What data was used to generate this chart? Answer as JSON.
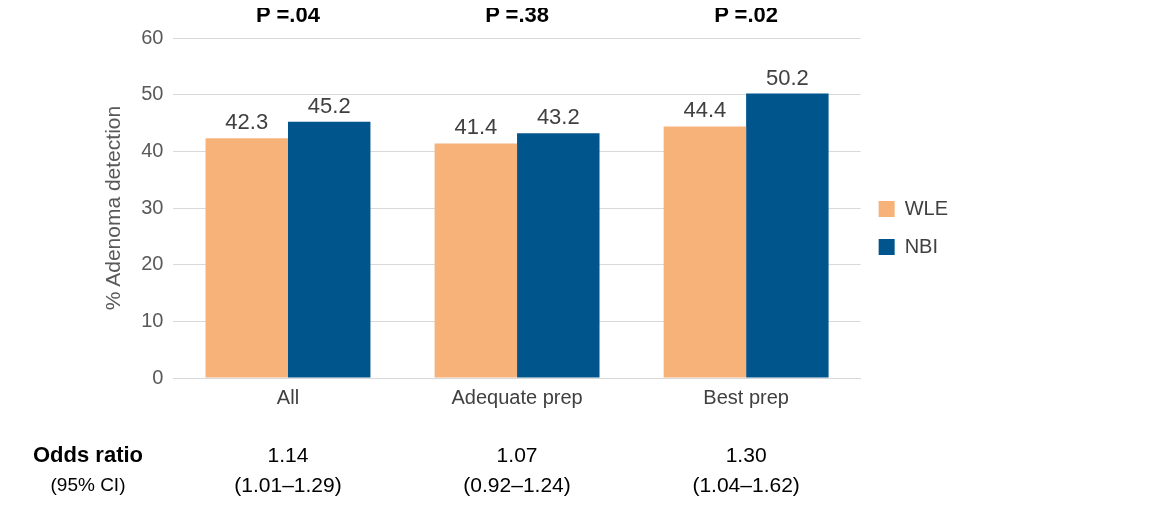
{
  "chart_data": {
    "type": "bar",
    "ylabel": "% Adenoma detection",
    "categories": [
      "All",
      "Adequate prep",
      "Best prep"
    ],
    "series": [
      {
        "name": "WLE",
        "color": "#f7b27a",
        "values": [
          42.3,
          41.4,
          44.4
        ]
      },
      {
        "name": "NBI",
        "color": "#00558c",
        "values": [
          45.2,
          43.2,
          50.2
        ]
      }
    ],
    "ylim": [
      0,
      60
    ],
    "yticks": [
      0,
      10,
      20,
      30,
      40,
      50,
      60
    ],
    "grid": "y",
    "legend": "right",
    "data_labels": true,
    "annotations": [
      "P =.04",
      "P =.38",
      "P =.02",
      "Odds ratio",
      "(95% CI)",
      "1.14",
      "(1.01–1.29)",
      "1.07",
      "(0.92–1.24)",
      "1.30",
      "(1.04–1.62)"
    ]
  }
}
